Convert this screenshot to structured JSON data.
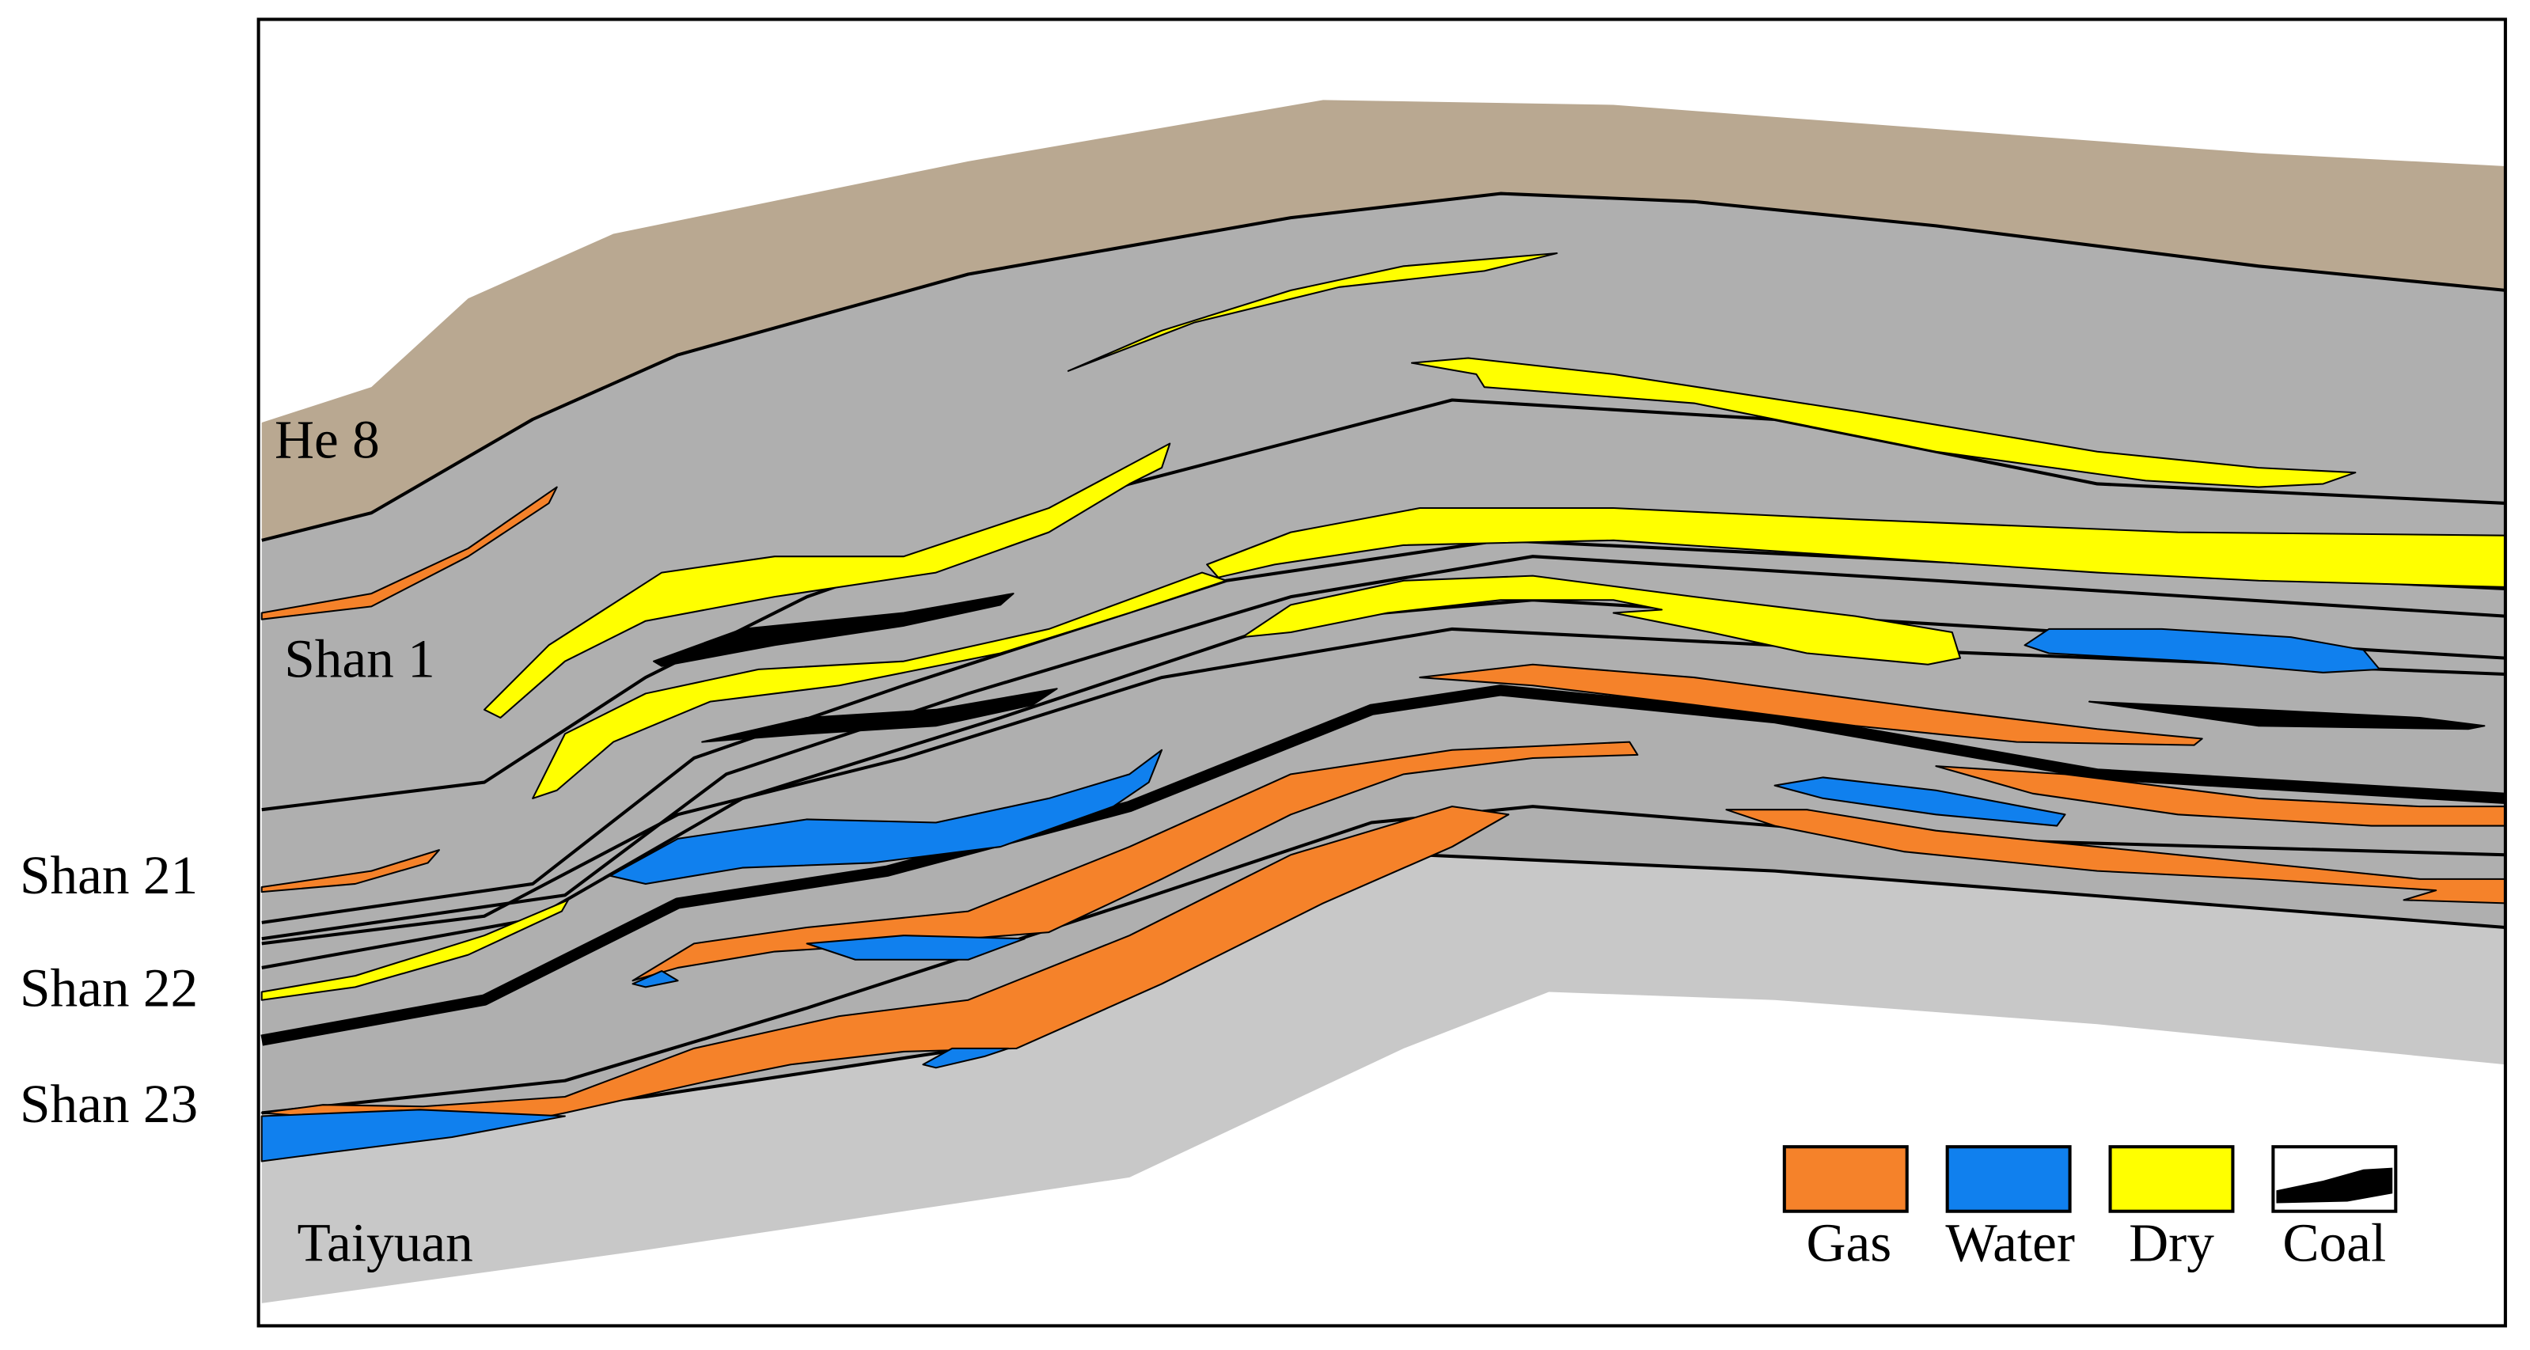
{
  "layers": [
    {
      "label": "He 8"
    },
    {
      "label": "Shan 1"
    },
    {
      "label": "Shan 21"
    },
    {
      "label": "Shan 22"
    },
    {
      "label": "Shan 23"
    },
    {
      "label": "Taiyuan"
    }
  ],
  "legend": {
    "items": [
      {
        "label": "Gas"
      },
      {
        "label": "Water"
      },
      {
        "label": "Dry"
      },
      {
        "label": "Coal"
      }
    ]
  }
}
